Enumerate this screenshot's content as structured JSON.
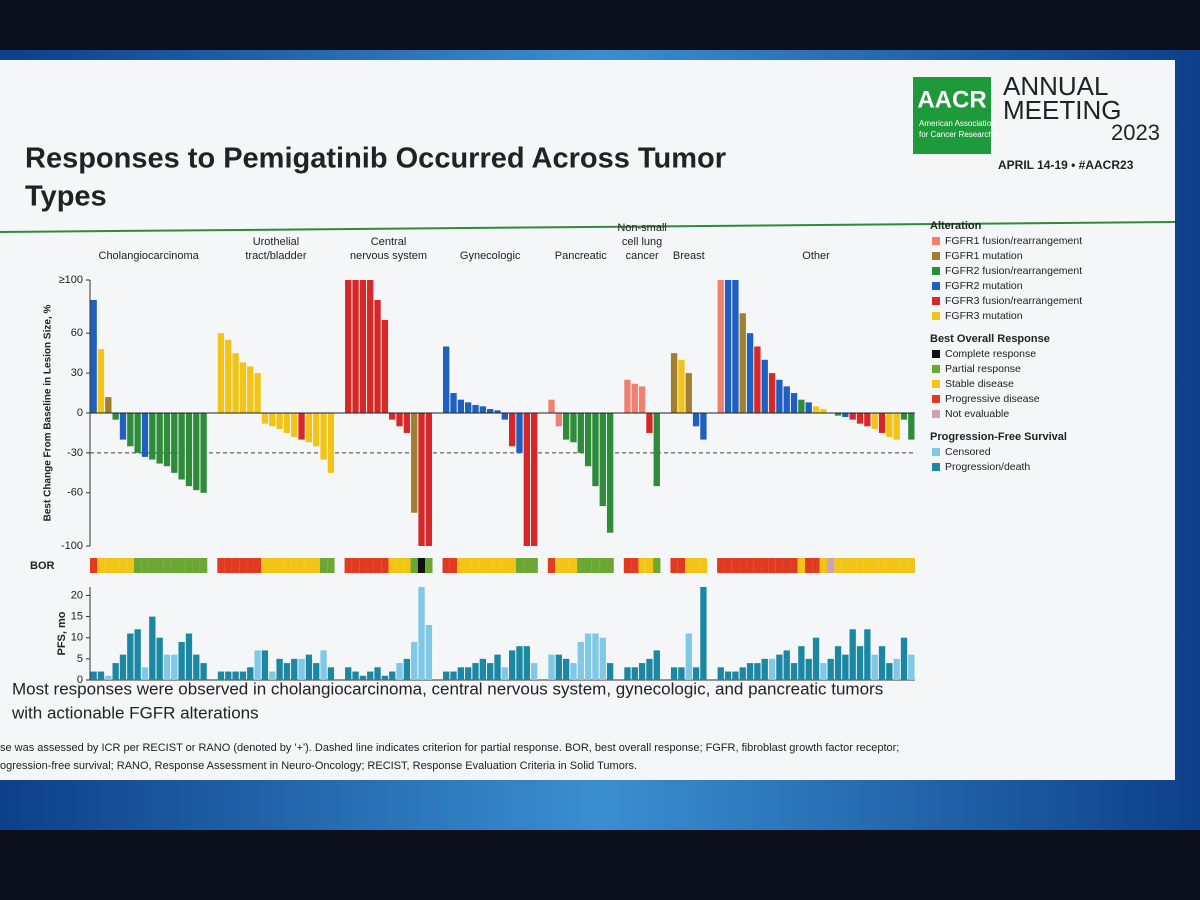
{
  "slide": {
    "title": [
      "Responses to Pemigatinib Occurred Across Tumor",
      "Types"
    ],
    "logo": {
      "mark": "AACR",
      "org": [
        "American Association",
        "for Cancer Research®"
      ],
      "meeting": [
        "ANNUAL",
        "MEETING",
        "2023"
      ],
      "dates": "APRIL 14-19 • #AACR23"
    },
    "summary": [
      "Most responses were observed in cholangiocarcinoma, central nervous system, gynecologic, and pancreatic tumors",
      "with actionable FGFR alterations"
    ],
    "footnote": [
      "se was assessed by ICR per RECIST or RANO (denoted by '+'). Dashed line indicates criterion for partial response. BOR, best overall response; FGFR, fibroblast growth factor receptor;",
      "ogression-free survival; RANO, Response Assessment in Neuro-Oncology; RECIST, Response Evaluation Criteria in Solid Tumors."
    ]
  },
  "chart_data": [
    {
      "type": "bar",
      "ylabel": "Best Change From Baseline in Lesion Size, %",
      "ylim": [
        -100,
        100
      ],
      "yticks": [
        {
          "value": 100,
          "label": "≥100"
        },
        60,
        30,
        0,
        -30,
        -60,
        -100
      ],
      "reference_line": -30,
      "bor_label": "BOR",
      "groups": [
        {
          "name": [
            "Cholangiocarcinoma"
          ],
          "values": [
            85,
            48,
            12,
            -5,
            -20,
            -25,
            -30,
            -33,
            -35,
            -38,
            -40,
            -45,
            -50,
            -55,
            -58,
            -60
          ],
          "colors": [
            "#1f5fbf",
            "#f2c417",
            "#a08030",
            "#2e8b3a",
            "#1f5fbf",
            "#2e8b3a",
            "#2e8b3a",
            "#1f5fbf",
            "#2e8b3a",
            "#2e8b3a",
            "#2e8b3a",
            "#2e8b3a",
            "#2e8b3a",
            "#2e8b3a",
            "#2e8b3a",
            "#2e8b3a"
          ],
          "bor": [
            "#e03a22",
            "#f2c417",
            "#f2c417",
            "#f2c417",
            "#f2c417",
            "#f2c417",
            "#6aa833",
            "#6aa833",
            "#6aa833",
            "#6aa833",
            "#6aa833",
            "#6aa833",
            "#6aa833",
            "#6aa833",
            "#6aa833",
            "#6aa833"
          ]
        },
        {
          "name": [
            "Urothelial",
            "tract/bladder"
          ],
          "values": [
            60,
            55,
            45,
            38,
            35,
            30,
            -8,
            -10,
            -12,
            -15,
            -18,
            -20,
            -22,
            -25,
            -35,
            -45
          ],
          "colors": [
            "#f2c417",
            "#f2c417",
            "#f2c417",
            "#f2c417",
            "#f2c417",
            "#f2c417",
            "#f2c417",
            "#f2c417",
            "#f2c417",
            "#f2c417",
            "#f2c417",
            "#d62828",
            "#f2c417",
            "#f2c417",
            "#f2c417",
            "#f2c417"
          ],
          "bor": [
            "#e03a22",
            "#e03a22",
            "#e03a22",
            "#e03a22",
            "#e03a22",
            "#e03a22",
            "#f2c417",
            "#f2c417",
            "#f2c417",
            "#f2c417",
            "#f2c417",
            "#f2c417",
            "#f2c417",
            "#f2c417",
            "#6aa833",
            "#6aa833"
          ]
        },
        {
          "name": [
            "Central",
            "nervous system"
          ],
          "values": [
            100,
            100,
            100,
            100,
            85,
            70,
            -5,
            -10,
            -15,
            -75,
            -100,
            -100
          ],
          "colors": [
            "#d62828",
            "#d62828",
            "#d62828",
            "#d62828",
            "#d62828",
            "#d62828",
            "#d62828",
            "#d62828",
            "#d62828",
            "#a08030",
            "#d62828",
            "#d62828"
          ],
          "bor": [
            "#e03a22",
            "#e03a22",
            "#e03a22",
            "#e03a22",
            "#e03a22",
            "#e03a22",
            "#f2c417",
            "#f2c417",
            "#f2c417",
            "#6aa833",
            "#111111",
            "#6aa833"
          ]
        },
        {
          "name": [
            "Gynecologic"
          ],
          "values": [
            50,
            15,
            10,
            8,
            6,
            5,
            3,
            2,
            -5,
            -25,
            -30,
            -100,
            -100
          ],
          "colors": [
            "#1f5fbf",
            "#1f5fbf",
            "#1f5fbf",
            "#1f5fbf",
            "#1f5fbf",
            "#1f5fbf",
            "#1f5fbf",
            "#1f5fbf",
            "#1f5fbf",
            "#d62828",
            "#1f5fbf",
            "#d62828",
            "#d62828"
          ],
          "bor": [
            "#e03a22",
            "#e03a22",
            "#f2c417",
            "#f2c417",
            "#f2c417",
            "#f2c417",
            "#f2c417",
            "#f2c417",
            "#f2c417",
            "#f2c417",
            "#6aa833",
            "#6aa833",
            "#6aa833"
          ]
        },
        {
          "name": [
            "Pancreatic"
          ],
          "values": [
            10,
            -10,
            -20,
            -22,
            -30,
            -40,
            -55,
            -70,
            -90
          ],
          "colors": [
            "#f08070",
            "#f08070",
            "#2e8b3a",
            "#2e8b3a",
            "#2e8b3a",
            "#2e8b3a",
            "#2e8b3a",
            "#2e8b3a",
            "#2e8b3a"
          ],
          "bor": [
            "#e03a22",
            "#f2c417",
            "#f2c417",
            "#f2c417",
            "#6aa833",
            "#6aa833",
            "#6aa833",
            "#6aa833",
            "#6aa833"
          ]
        },
        {
          "name": [
            "Non-small",
            "cell lung",
            "cancer"
          ],
          "values": [
            25,
            22,
            20,
            -15,
            -55
          ],
          "colors": [
            "#f08070",
            "#f08070",
            "#f08070",
            "#d62828",
            "#2e8b3a"
          ],
          "bor": [
            "#e03a22",
            "#e03a22",
            "#f2c417",
            "#f2c417",
            "#6aa833"
          ]
        },
        {
          "name": [
            "Breast"
          ],
          "values": [
            45,
            40,
            30,
            -10,
            -20
          ],
          "colors": [
            "#a08030",
            "#f2c417",
            "#a08030",
            "#1f5fbf",
            "#1f5fbf"
          ],
          "bor": [
            "#e03a22",
            "#e03a22",
            "#f2c417",
            "#f2c417",
            "#f2c417"
          ]
        },
        {
          "name": [
            "Other"
          ],
          "values": [
            100,
            100,
            100,
            75,
            60,
            50,
            40,
            30,
            25,
            20,
            15,
            10,
            8,
            5,
            3,
            0,
            -2,
            -3,
            -5,
            -8,
            -10,
            -12,
            -15,
            -18,
            -20,
            -5,
            -20
          ],
          "colors": [
            "#f08070",
            "#1f5fbf",
            "#1f5fbf",
            "#a08030",
            "#1f5fbf",
            "#d62828",
            "#1f5fbf",
            "#d62828",
            "#1f5fbf",
            "#1f5fbf",
            "#1f5fbf",
            "#2e8b3a",
            "#1f5fbf",
            "#f2c417",
            "#f2c417",
            "#f2c417",
            "#2e8b3a",
            "#1f5fbf",
            "#d62828",
            "#d62828",
            "#d62828",
            "#f2c417",
            "#d62828",
            "#f2c417",
            "#f2c417",
            "#2e8b3a",
            "#2e8b3a"
          ],
          "bor": [
            "#e03a22",
            "#e03a22",
            "#e03a22",
            "#e03a22",
            "#e03a22",
            "#e03a22",
            "#e03a22",
            "#e03a22",
            "#e03a22",
            "#e03a22",
            "#e03a22",
            "#f2c417",
            "#e03a22",
            "#e03a22",
            "#f2c417",
            "#c9a3b8",
            "#f2c417",
            "#f2c417",
            "#f2c417",
            "#f2c417",
            "#f2c417",
            "#f2c417",
            "#f2c417",
            "#f2c417",
            "#f2c417",
            "#f2c417",
            "#f2c417"
          ]
        }
      ],
      "legend": [
        {
          "title": "Alteration",
          "items": [
            {
              "name": "FGFR1 fusion/rearrangement",
              "color": "#f08070"
            },
            {
              "name": "FGFR1 mutation",
              "color": "#a08030"
            },
            {
              "name": "FGFR2 fusion/rearrangement",
              "color": "#2e8b3a"
            },
            {
              "name": "FGFR2 mutation",
              "color": "#1f5fbf"
            },
            {
              "name": "FGFR3 fusion/rearrangement",
              "color": "#d62828"
            },
            {
              "name": "FGFR3 mutation",
              "color": "#f2c417"
            }
          ]
        },
        {
          "title": "Best Overall Response",
          "items": [
            {
              "name": "Complete response",
              "color": "#111111"
            },
            {
              "name": "Partial response",
              "color": "#6aa833"
            },
            {
              "name": "Stable disease",
              "color": "#f2c417"
            },
            {
              "name": "Progressive disease",
              "color": "#e03a22"
            },
            {
              "name": "Not evaluable",
              "color": "#c9a3b8"
            }
          ]
        },
        {
          "title": "Progression-Free Survival",
          "items": [
            {
              "name": "Censored",
              "color": "#7fc8e6"
            },
            {
              "name": "Progression/death",
              "color": "#1b88a3"
            }
          ]
        }
      ]
    },
    {
      "type": "bar",
      "ylabel": "PFS, mo",
      "ylim": [
        0,
        22
      ],
      "yticks": [
        0,
        5,
        10,
        15,
        20
      ],
      "groups": [
        {
          "values": [
            2,
            2,
            1,
            4,
            6,
            11,
            12,
            3,
            15,
            10,
            6,
            6,
            9,
            11,
            6,
            4
          ],
          "colors": [
            "#1b88a3",
            "#1b88a3",
            "#7fc8e6",
            "#1b88a3",
            "#1b88a3",
            "#1b88a3",
            "#1b88a3",
            "#7fc8e6",
            "#1b88a3",
            "#1b88a3",
            "#7fc8e6",
            "#7fc8e6",
            "#1b88a3",
            "#1b88a3",
            "#1b88a3",
            "#1b88a3"
          ]
        },
        {
          "values": [
            2,
            2,
            2,
            2,
            3,
            7,
            7,
            2,
            5,
            4,
            5,
            5,
            6,
            4,
            7,
            3
          ],
          "colors": [
            "#1b88a3",
            "#1b88a3",
            "#1b88a3",
            "#1b88a3",
            "#1b88a3",
            "#7fc8e6",
            "#1b88a3",
            "#7fc8e6",
            "#1b88a3",
            "#1b88a3",
            "#1b88a3",
            "#7fc8e6",
            "#1b88a3",
            "#1b88a3",
            "#7fc8e6",
            "#1b88a3"
          ]
        },
        {
          "values": [
            3,
            2,
            1,
            2,
            3,
            1,
            2,
            4,
            5,
            9,
            22,
            13
          ],
          "colors": [
            "#1b88a3",
            "#1b88a3",
            "#1b88a3",
            "#1b88a3",
            "#1b88a3",
            "#1b88a3",
            "#1b88a3",
            "#7fc8e6",
            "#1b88a3",
            "#7fc8e6",
            "#7fc8e6",
            "#7fc8e6"
          ]
        },
        {
          "values": [
            2,
            2,
            3,
            3,
            4,
            5,
            4,
            6,
            3,
            7,
            8,
            8,
            4
          ],
          "colors": [
            "#1b88a3",
            "#1b88a3",
            "#1b88a3",
            "#1b88a3",
            "#1b88a3",
            "#1b88a3",
            "#1b88a3",
            "#1b88a3",
            "#7fc8e6",
            "#1b88a3",
            "#1b88a3",
            "#1b88a3",
            "#7fc8e6"
          ]
        },
        {
          "values": [
            6,
            6,
            5,
            4,
            9,
            11,
            11,
            10,
            4
          ],
          "colors": [
            "#7fc8e6",
            "#1b88a3",
            "#1b88a3",
            "#7fc8e6",
            "#7fc8e6",
            "#7fc8e6",
            "#7fc8e6",
            "#7fc8e6",
            "#1b88a3"
          ]
        },
        {
          "values": [
            3,
            3,
            4,
            5,
            7
          ],
          "colors": [
            "#1b88a3",
            "#1b88a3",
            "#1b88a3",
            "#1b88a3",
            "#1b88a3"
          ]
        },
        {
          "values": [
            3,
            3,
            11,
            3,
            22
          ],
          "colors": [
            "#1b88a3",
            "#1b88a3",
            "#7fc8e6",
            "#1b88a3",
            "#1b88a3"
          ]
        },
        {
          "values": [
            3,
            2,
            2,
            3,
            4,
            4,
            5,
            5,
            6,
            7,
            4,
            8,
            5,
            10,
            4,
            5,
            8,
            6,
            12,
            8,
            12,
            6,
            8,
            4,
            5,
            10,
            6
          ],
          "colors": [
            "#1b88a3",
            "#1b88a3",
            "#1b88a3",
            "#1b88a3",
            "#1b88a3",
            "#1b88a3",
            "#1b88a3",
            "#7fc8e6",
            "#1b88a3",
            "#1b88a3",
            "#1b88a3",
            "#1b88a3",
            "#1b88a3",
            "#1b88a3",
            "#7fc8e6",
            "#1b88a3",
            "#1b88a3",
            "#1b88a3",
            "#1b88a3",
            "#1b88a3",
            "#1b88a3",
            "#7fc8e6",
            "#1b88a3",
            "#1b88a3",
            "#7fc8e6",
            "#1b88a3",
            "#7fc8e6"
          ]
        }
      ]
    }
  ]
}
